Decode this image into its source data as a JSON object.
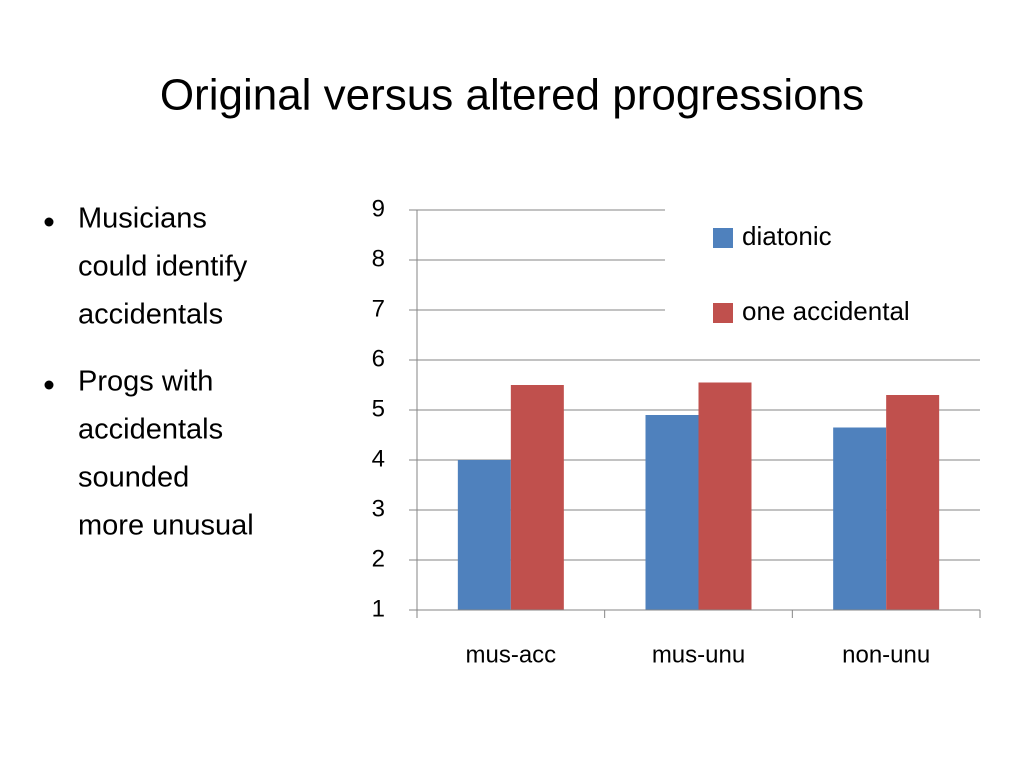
{
  "title": "Original versus altered progressions",
  "bullets": [
    [
      "Musicians",
      "could identify",
      "accidentals"
    ],
    [
      "Progs with",
      "accidentals",
      "sounded",
      "more unusual"
    ]
  ],
  "chart_data": {
    "type": "bar",
    "categories": [
      "mus-acc",
      "mus-unu",
      "non-unu"
    ],
    "series": [
      {
        "name": "diatonic",
        "color": "#4f81bd",
        "values": [
          4.0,
          4.9,
          4.65
        ]
      },
      {
        "name": "one accidental",
        "color": "#c0504d",
        "values": [
          5.5,
          5.55,
          5.3
        ]
      }
    ],
    "ylim": [
      1,
      9
    ],
    "yticks": [
      1,
      2,
      3,
      4,
      5,
      6,
      7,
      8,
      9
    ],
    "grid": true,
    "legend": "top-right"
  }
}
